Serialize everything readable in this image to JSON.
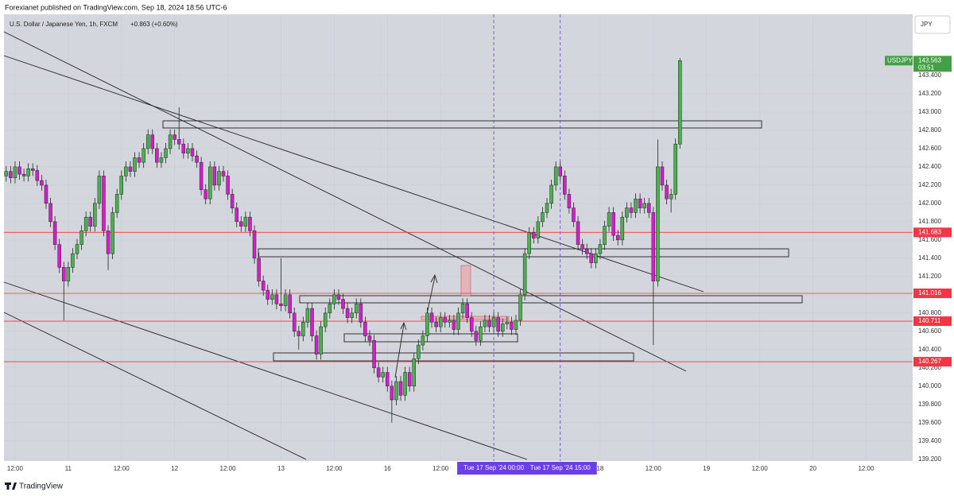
{
  "header": {
    "publisher": "Forexianet published on TradingView.com, Sep 18, 2024 18:56 UTC-6"
  },
  "footer": {
    "brand": "TradingView"
  },
  "chart_data": {
    "type": "candlestick",
    "title": "U.S. Dollar / Japanese Yen, 1h, FXCM",
    "change": "+0.863 (+0.60%)",
    "currency": "JPY",
    "symbol": "USDJPY",
    "last_price": 143.563,
    "countdown": "03:51",
    "up_color": "#4caf50",
    "down_color": "#d81bd0",
    "last_color": "#43a047",
    "candles": [
      [
        142.3,
        142.41,
        142.24,
        142.35
      ],
      [
        142.35,
        142.41,
        142.22,
        142.28
      ],
      [
        142.28,
        142.46,
        142.22,
        142.4
      ],
      [
        142.4,
        142.46,
        142.26,
        142.32
      ],
      [
        142.32,
        142.38,
        142.24,
        142.3
      ],
      [
        142.3,
        142.44,
        142.24,
        142.38
      ],
      [
        142.38,
        142.44,
        142.3,
        142.36
      ],
      [
        142.36,
        142.42,
        142.19,
        142.25
      ],
      [
        142.25,
        142.31,
        142.14,
        142.2
      ],
      [
        142.2,
        142.26,
        141.94,
        142.0
      ],
      [
        142.0,
        142.06,
        141.74,
        141.8
      ],
      [
        141.8,
        141.86,
        141.49,
        141.55
      ],
      [
        141.55,
        141.61,
        141.24,
        141.3
      ],
      [
        141.3,
        141.36,
        140.72,
        141.15
      ],
      [
        141.15,
        141.36,
        141.09,
        141.3
      ],
      [
        141.3,
        141.51,
        141.24,
        141.45
      ],
      [
        141.45,
        141.61,
        141.39,
        141.55
      ],
      [
        141.55,
        141.76,
        141.49,
        141.7
      ],
      [
        141.7,
        141.91,
        141.64,
        141.85
      ],
      [
        141.85,
        141.91,
        141.69,
        141.75
      ],
      [
        141.75,
        142.06,
        141.69,
        142.0
      ],
      [
        142.0,
        142.36,
        141.94,
        142.3
      ],
      [
        142.3,
        142.36,
        141.64,
        141.7
      ],
      [
        141.7,
        141.76,
        141.27,
        141.45
      ],
      [
        141.45,
        141.96,
        141.39,
        141.9
      ],
      [
        141.9,
        142.16,
        141.84,
        142.1
      ],
      [
        142.1,
        142.36,
        142.04,
        142.3
      ],
      [
        142.3,
        142.46,
        142.24,
        142.4
      ],
      [
        142.4,
        142.46,
        142.29,
        142.35
      ],
      [
        142.35,
        142.56,
        142.29,
        142.5
      ],
      [
        142.5,
        142.56,
        142.39,
        142.45
      ],
      [
        142.45,
        142.66,
        142.39,
        142.6
      ],
      [
        142.6,
        142.81,
        142.54,
        142.75
      ],
      [
        142.75,
        142.81,
        142.54,
        142.6
      ],
      [
        142.6,
        142.66,
        142.39,
        142.45
      ],
      [
        142.45,
        142.56,
        142.39,
        142.5
      ],
      [
        142.5,
        142.66,
        142.44,
        142.6
      ],
      [
        142.6,
        142.81,
        142.54,
        142.75
      ],
      [
        142.75,
        142.81,
        142.64,
        142.7
      ],
      [
        142.7,
        143.05,
        142.59,
        142.65
      ],
      [
        142.65,
        142.71,
        142.49,
        142.55
      ],
      [
        142.55,
        142.66,
        142.49,
        142.6
      ],
      [
        142.6,
        142.66,
        142.46,
        142.52
      ],
      [
        142.52,
        142.58,
        142.39,
        142.45
      ],
      [
        142.45,
        142.51,
        142.09,
        142.15
      ],
      [
        142.15,
        142.21,
        141.99,
        142.05
      ],
      [
        142.05,
        142.46,
        141.99,
        142.4
      ],
      [
        142.4,
        142.46,
        142.14,
        142.2
      ],
      [
        142.2,
        142.41,
        142.14,
        142.35
      ],
      [
        142.35,
        142.41,
        142.24,
        142.3
      ],
      [
        142.3,
        142.36,
        142.04,
        142.1
      ],
      [
        142.1,
        142.16,
        141.89,
        141.95
      ],
      [
        141.95,
        142.01,
        141.74,
        141.8
      ],
      [
        141.8,
        141.86,
        141.69,
        141.75
      ],
      [
        141.75,
        141.91,
        141.69,
        141.85
      ],
      [
        141.85,
        141.91,
        141.64,
        141.7
      ],
      [
        141.7,
        141.76,
        141.34,
        141.4
      ],
      [
        141.4,
        141.46,
        141.09,
        141.15
      ],
      [
        141.15,
        141.21,
        140.99,
        141.05
      ],
      [
        141.05,
        141.11,
        140.89,
        140.95
      ],
      [
        140.95,
        141.06,
        140.89,
        141.0
      ],
      [
        141.0,
        141.06,
        140.84,
        140.9
      ],
      [
        140.9,
        141.4,
        140.82,
        140.88
      ],
      [
        140.88,
        141.06,
        140.82,
        141.0
      ],
      [
        141.0,
        141.06,
        140.74,
        140.8
      ],
      [
        140.8,
        140.86,
        140.54,
        140.6
      ],
      [
        140.6,
        140.66,
        140.4,
        140.55
      ],
      [
        140.55,
        140.76,
        140.49,
        140.7
      ],
      [
        140.7,
        140.91,
        140.64,
        140.85
      ],
      [
        140.85,
        140.91,
        140.49,
        140.55
      ],
      [
        140.55,
        140.61,
        140.29,
        140.35
      ],
      [
        140.35,
        140.71,
        140.29,
        140.65
      ],
      [
        140.65,
        140.86,
        140.59,
        140.8
      ],
      [
        140.8,
        140.96,
        140.74,
        140.9
      ],
      [
        140.9,
        141.06,
        140.84,
        141.0
      ],
      [
        141.0,
        141.06,
        140.89,
        140.95
      ],
      [
        140.95,
        141.01,
        140.79,
        140.85
      ],
      [
        140.85,
        140.91,
        140.69,
        140.75
      ],
      [
        140.75,
        140.86,
        140.69,
        140.8
      ],
      [
        140.8,
        140.96,
        140.74,
        140.9
      ],
      [
        140.9,
        140.96,
        140.64,
        140.7
      ],
      [
        140.7,
        140.76,
        140.49,
        140.55
      ],
      [
        140.55,
        140.61,
        140.44,
        140.5
      ],
      [
        140.5,
        140.56,
        140.14,
        140.2
      ],
      [
        140.2,
        140.26,
        140.04,
        140.1
      ],
      [
        140.1,
        140.21,
        140.04,
        140.15
      ],
      [
        140.15,
        140.21,
        139.94,
        140.0
      ],
      [
        140.0,
        140.06,
        139.6,
        139.85
      ],
      [
        139.85,
        140.11,
        139.79,
        140.05
      ],
      [
        140.05,
        140.11,
        139.84,
        139.9
      ],
      [
        139.9,
        140.21,
        139.84,
        140.15
      ],
      [
        140.15,
        140.21,
        139.94,
        140.0
      ],
      [
        140.0,
        140.36,
        139.94,
        140.3
      ],
      [
        140.3,
        140.51,
        140.24,
        140.45
      ],
      [
        140.45,
        140.61,
        140.39,
        140.55
      ],
      [
        140.55,
        140.86,
        140.49,
        140.8
      ],
      [
        140.8,
        140.86,
        140.64,
        140.7
      ],
      [
        140.7,
        140.76,
        140.59,
        140.65
      ],
      [
        140.65,
        140.81,
        140.59,
        140.75
      ],
      [
        140.75,
        140.81,
        140.64,
        140.7
      ],
      [
        140.7,
        140.78,
        140.64,
        140.72
      ],
      [
        140.72,
        140.78,
        140.56,
        140.62
      ],
      [
        140.62,
        140.86,
        140.56,
        140.8
      ],
      [
        140.8,
        140.96,
        140.74,
        140.9
      ],
      [
        140.9,
        140.96,
        140.69,
        140.75
      ],
      [
        140.75,
        140.81,
        140.54,
        140.6
      ],
      [
        140.6,
        140.66,
        140.44,
        140.5
      ],
      [
        140.5,
        140.71,
        140.44,
        140.65
      ],
      [
        140.65,
        140.78,
        140.59,
        140.72
      ],
      [
        140.72,
        140.78,
        140.59,
        140.65
      ],
      [
        140.65,
        140.81,
        140.59,
        140.75
      ],
      [
        140.75,
        140.81,
        140.54,
        140.6
      ],
      [
        140.6,
        140.74,
        140.54,
        140.68
      ],
      [
        140.68,
        140.76,
        140.62,
        140.7
      ],
      [
        140.7,
        140.76,
        140.56,
        140.62
      ],
      [
        140.62,
        140.78,
        140.56,
        140.72
      ],
      [
        140.72,
        141.06,
        140.66,
        141.0
      ],
      [
        141.0,
        141.51,
        140.94,
        141.45
      ],
      [
        141.45,
        141.74,
        141.39,
        141.68
      ],
      [
        141.68,
        141.74,
        141.56,
        141.62
      ],
      [
        141.62,
        141.86,
        141.56,
        141.8
      ],
      [
        141.8,
        141.96,
        141.74,
        141.9
      ],
      [
        141.9,
        142.06,
        141.84,
        142.0
      ],
      [
        142.0,
        142.26,
        141.94,
        142.2
      ],
      [
        142.2,
        142.46,
        142.14,
        142.4
      ],
      [
        142.4,
        142.46,
        142.24,
        142.3
      ],
      [
        142.3,
        142.36,
        142.04,
        142.1
      ],
      [
        142.1,
        142.16,
        141.89,
        141.95
      ],
      [
        141.95,
        142.01,
        141.74,
        141.8
      ],
      [
        141.8,
        141.86,
        141.49,
        141.55
      ],
      [
        141.55,
        141.61,
        141.44,
        141.5
      ],
      [
        141.5,
        141.56,
        141.39,
        141.45
      ],
      [
        141.45,
        141.51,
        141.29,
        141.35
      ],
      [
        141.35,
        141.51,
        141.29,
        141.45
      ],
      [
        141.45,
        141.61,
        141.39,
        141.55
      ],
      [
        141.55,
        141.81,
        141.49,
        141.75
      ],
      [
        141.75,
        141.96,
        141.69,
        141.9
      ],
      [
        141.9,
        141.96,
        141.59,
        141.65
      ],
      [
        141.65,
        141.71,
        141.54,
        141.6
      ],
      [
        141.6,
        141.91,
        141.54,
        141.85
      ],
      [
        141.85,
        142.01,
        141.79,
        141.95
      ],
      [
        141.95,
        142.01,
        141.84,
        141.9
      ],
      [
        141.9,
        142.11,
        141.84,
        142.05
      ],
      [
        142.05,
        142.11,
        141.89,
        141.95
      ],
      [
        141.95,
        142.06,
        141.89,
        142.0
      ],
      [
        142.0,
        142.06,
        141.84,
        141.9
      ],
      [
        141.9,
        141.96,
        140.45,
        141.15
      ],
      [
        141.15,
        142.7,
        141.09,
        142.4
      ],
      [
        142.4,
        142.46,
        142.14,
        142.2
      ],
      [
        142.2,
        142.26,
        141.99,
        142.05
      ],
      [
        142.05,
        142.16,
        141.9,
        142.1
      ],
      [
        142.1,
        142.71,
        142.04,
        142.65
      ],
      [
        142.65,
        143.59,
        142.6,
        143.563
      ]
    ],
    "xlim": [
      -0.5,
      204.5
    ],
    "xticks": [
      {
        "value": 2,
        "label": "12:00"
      },
      {
        "value": 14,
        "label": "11"
      },
      {
        "value": 26,
        "label": "12:00"
      },
      {
        "value": 38,
        "label": "12"
      },
      {
        "value": 50,
        "label": "12:00"
      },
      {
        "value": 62,
        "label": "13"
      },
      {
        "value": 74,
        "label": "12:00"
      },
      {
        "value": 86,
        "label": "16"
      },
      {
        "value": 98,
        "label": "12:00"
      },
      {
        "value": 134,
        "label": "18"
      },
      {
        "value": 146,
        "label": "12:00"
      },
      {
        "value": 158,
        "label": "19"
      },
      {
        "value": 170,
        "label": "12:00"
      },
      {
        "value": 182,
        "label": "20"
      },
      {
        "value": 194,
        "label": "12:00"
      }
    ],
    "ylim": [
      139.18,
      144.07
    ],
    "yticks": [
      {
        "value": 139.2,
        "label": "139.200"
      },
      {
        "value": 139.4,
        "label": "139.400"
      },
      {
        "value": 139.6,
        "label": "139.600"
      },
      {
        "value": 139.8,
        "label": "139.800"
      },
      {
        "value": 140,
        "label": "140.000"
      },
      {
        "value": 140.2,
        "label": "140.200"
      },
      {
        "value": 140.4,
        "label": "140.400"
      },
      {
        "value": 140.6,
        "label": "140.600"
      },
      {
        "value": 140.8,
        "label": "140.800"
      },
      {
        "value": 141,
        "label": "141.000"
      },
      {
        "value": 141.2,
        "label": "141.200"
      },
      {
        "value": 141.4,
        "label": "141.400"
      },
      {
        "value": 141.6,
        "label": "141.600"
      },
      {
        "value": 141.8,
        "label": "141.800"
      },
      {
        "value": 142,
        "label": "142.000"
      },
      {
        "value": 142.2,
        "label": "142.200"
      },
      {
        "value": 142.4,
        "label": "142.400"
      },
      {
        "value": 142.6,
        "label": "142.600"
      },
      {
        "value": 142.8,
        "label": "142.800"
      },
      {
        "value": 143,
        "label": "143.000"
      },
      {
        "value": 143.2,
        "label": "143.200"
      },
      {
        "value": 143.4,
        "label": "143.400"
      }
    ],
    "levels": {
      "color": "#f23645",
      "values": [
        141.683,
        141.016,
        140.711,
        140.267
      ]
    },
    "markers": {
      "color": "#6a3ee8",
      "items": [
        {
          "value": 110,
          "label": "Tue 17 Sep '24  00:00"
        },
        {
          "value": 125,
          "label": "Tue 17 Sep '24  15:00"
        }
      ]
    }
  }
}
